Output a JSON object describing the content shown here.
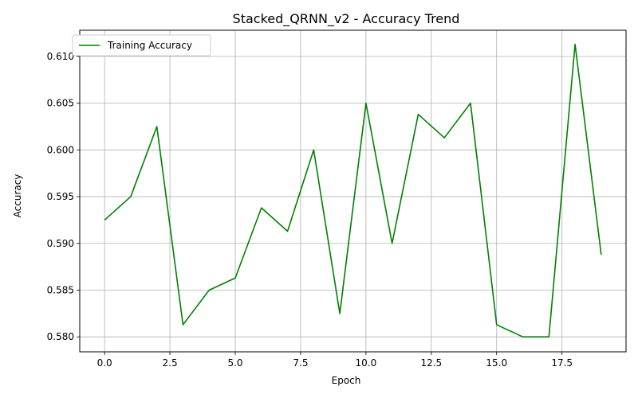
{
  "chart_data": {
    "type": "line",
    "title": "Stacked_QRNN_v2 - Accuracy Trend",
    "xlabel": "Epoch",
    "ylabel": "Accuracy",
    "xlim": [
      -0.95,
      19.95
    ],
    "ylim": [
      0.5784,
      0.6128
    ],
    "xticks": [
      0.0,
      2.5,
      5.0,
      7.5,
      10.0,
      12.5,
      15.0,
      17.5
    ],
    "xtick_labels": [
      "0.0",
      "2.5",
      "5.0",
      "7.5",
      "10.0",
      "12.5",
      "15.0",
      "17.5"
    ],
    "yticks": [
      0.58,
      0.585,
      0.59,
      0.595,
      0.6,
      0.605,
      0.61
    ],
    "ytick_labels": [
      "0.580",
      "0.585",
      "0.590",
      "0.595",
      "0.600",
      "0.605",
      "0.610"
    ],
    "grid": true,
    "legend_position": "top-left",
    "x": [
      0,
      1,
      2,
      3,
      4,
      5,
      6,
      7,
      8,
      9,
      10,
      11,
      12,
      13,
      14,
      15,
      16,
      17,
      18,
      19
    ],
    "series": [
      {
        "name": "Training Accuracy",
        "color": "#008000",
        "values": [
          0.5925,
          0.595,
          0.6025,
          0.5813,
          0.585,
          0.5863,
          0.5938,
          0.5913,
          0.6,
          0.5825,
          0.605,
          0.59,
          0.6038,
          0.6013,
          0.605,
          0.5813,
          0.58,
          0.58,
          0.6113,
          0.5888
        ]
      }
    ]
  }
}
